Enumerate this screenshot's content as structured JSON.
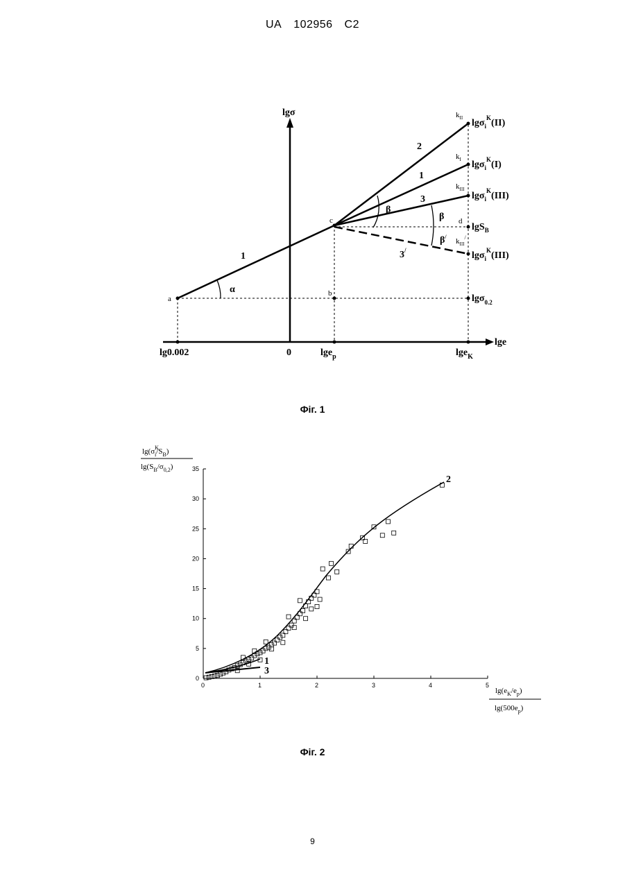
{
  "header": {
    "country": "UA",
    "number": "102956",
    "kind": "C2"
  },
  "fig1": {
    "caption": "Фiг. 1",
    "yaxis": "lgσ",
    "xaxis": "lge",
    "origin": "0",
    "x_labels": {
      "a": "lg0.002",
      "p": "lge",
      "p_sub": "p",
      "k": "lge",
      "k_sub": "K"
    },
    "points": {
      "a": "a",
      "b": "b",
      "c": "c",
      "d": "d",
      "kII": "k",
      "kII_sub": "II",
      "kI": "k",
      "kI_sub": "I",
      "kIII": "k",
      "kIII_sub": "III",
      "kIIIp": "k",
      "kIIIp_sub": "III",
      "kIIIp_sup": "/"
    },
    "right_labels": {
      "r1": {
        "main": "lgσ",
        "sub": "i",
        "sup": "K",
        "tail": "(II)"
      },
      "r2": {
        "main": "lgσ",
        "sub": "i",
        "sup": "K",
        "tail": "(I)"
      },
      "r3": {
        "main": "lgσ",
        "sub": "i",
        "sup": "K",
        "tail": "(III)"
      },
      "r4": {
        "main": "lgS",
        "sub": "B"
      },
      "r5": {
        "main": "lgσ",
        "sub": "i",
        "sup": "K",
        "tail": "(III)"
      },
      "r6": {
        "main": "lgσ",
        "sub": "0.2"
      }
    },
    "line_labels": {
      "l1a": "1",
      "l1b": "1",
      "l2": "2",
      "l3": "3",
      "l3p": "3",
      "l3p_sup": "/"
    },
    "angles": {
      "alpha": "α",
      "beta1": "β",
      "beta2": "β",
      "beta3": "β",
      "beta3_sup": "/"
    }
  },
  "fig2": {
    "caption": "Фiг. 2",
    "ylabel_num": {
      "a": "lg(σ",
      "sup": "K",
      "sub": "i",
      "b": "/S",
      "sub2": "B",
      "c": ")"
    },
    "ylabel_den": {
      "a": "lg(S",
      "sub": "B",
      "b": "/σ",
      "sub2": "0,2",
      "c": ")"
    },
    "xlabel_num": {
      "a": "lg(e",
      "sub": "K",
      "b": "/e",
      "sub2": "p",
      "c": ")"
    },
    "xlabel_den": {
      "a": "lg(500e",
      "sub": "p",
      "c": ")"
    },
    "curve_labels": {
      "c1": "1",
      "c2": "2",
      "c3": "3"
    }
  },
  "chart_data": {
    "type": "scatter",
    "xlim": [
      0,
      5
    ],
    "ylim": [
      0,
      35
    ],
    "x_ticks": [
      "0",
      "1",
      "2",
      "3",
      "4",
      "5"
    ],
    "y_ticks": [
      "0",
      "5",
      "10",
      "15",
      "20",
      "25",
      "30",
      "35"
    ],
    "grid": false,
    "series": [
      {
        "marker": "square",
        "points": [
          [
            0.05,
            0.1
          ],
          [
            0.1,
            0.2
          ],
          [
            0.15,
            0.3
          ],
          [
            0.2,
            0.4
          ],
          [
            0.25,
            0.5
          ],
          [
            0.3,
            0.7
          ],
          [
            0.35,
            0.9
          ],
          [
            0.4,
            1.1
          ],
          [
            0.45,
            1.4
          ],
          [
            0.5,
            1.6
          ],
          [
            0.55,
            1.8
          ],
          [
            0.6,
            2.1
          ],
          [
            0.65,
            2.3
          ],
          [
            0.7,
            2.6
          ],
          [
            0.75,
            2.9
          ],
          [
            0.8,
            3.2
          ],
          [
            0.85,
            3.4
          ],
          [
            0.9,
            3.8
          ],
          [
            0.95,
            4.1
          ],
          [
            1.0,
            4.3
          ],
          [
            1.05,
            4.6
          ],
          [
            1.1,
            5.0
          ],
          [
            1.15,
            5.2
          ],
          [
            1.2,
            5.6
          ],
          [
            1.25,
            5.9
          ],
          [
            1.3,
            6.4
          ],
          [
            1.35,
            6.9
          ],
          [
            1.4,
            7.2
          ],
          [
            1.45,
            7.8
          ],
          [
            1.5,
            8.4
          ],
          [
            1.55,
            8.9
          ],
          [
            1.6,
            9.6
          ],
          [
            1.65,
            10.2
          ],
          [
            1.7,
            10.8
          ],
          [
            1.75,
            11.3
          ],
          [
            1.8,
            12.1
          ],
          [
            1.85,
            12.8
          ],
          [
            1.9,
            13.4
          ],
          [
            1.95,
            13.9
          ],
          [
            2.0,
            14.5
          ],
          [
            2.05,
            13.2
          ],
          [
            2.1,
            18.3
          ],
          [
            2.2,
            16.8
          ],
          [
            2.25,
            19.2
          ],
          [
            2.35,
            17.8
          ],
          [
            2.55,
            21.2
          ],
          [
            2.6,
            22.1
          ],
          [
            2.85,
            22.9
          ],
          [
            2.8,
            23.5
          ],
          [
            3.0,
            25.3
          ],
          [
            3.15,
            23.9
          ],
          [
            3.25,
            26.2
          ],
          [
            3.35,
            24.3
          ],
          [
            4.2,
            32.3
          ],
          [
            0.6,
            1.3
          ],
          [
            0.8,
            2.4
          ],
          [
            1.0,
            3.1
          ],
          [
            1.2,
            4.9
          ],
          [
            1.4,
            6.0
          ],
          [
            1.6,
            8.5
          ],
          [
            1.8,
            10.0
          ],
          [
            1.9,
            11.6
          ],
          [
            2.0,
            12.0
          ],
          [
            1.7,
            13.0
          ],
          [
            1.5,
            10.3
          ],
          [
            1.1,
            6.1
          ],
          [
            0.9,
            4.6
          ],
          [
            0.7,
            3.5
          ]
        ]
      }
    ]
  }
}
